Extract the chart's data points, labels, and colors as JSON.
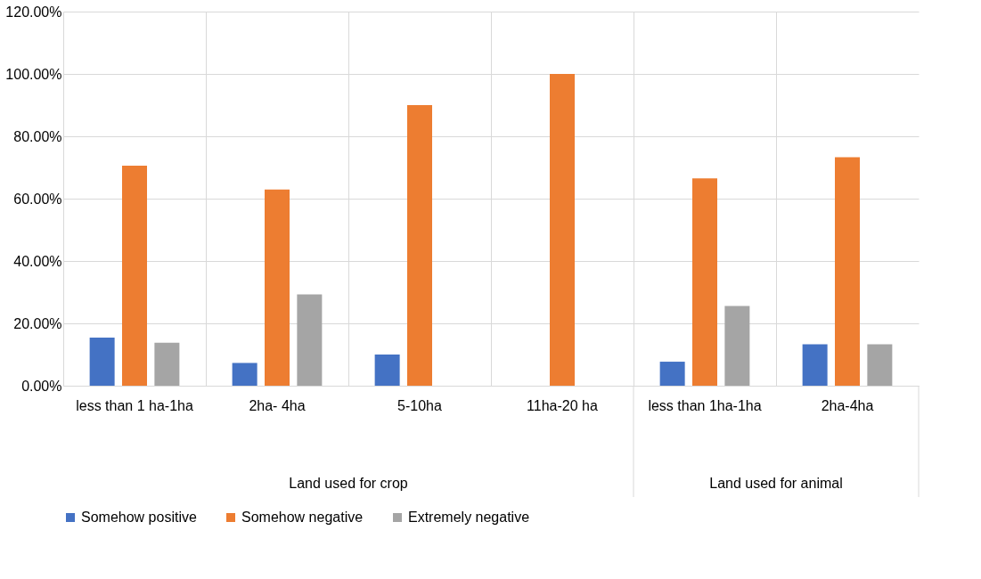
{
  "chart_data": {
    "type": "bar",
    "categories": [
      "less than 1 ha-1ha",
      "2ha- 4ha",
      "5-10ha",
      "11ha-20 ha",
      "less than 1ha-1ha",
      "2ha-4ha"
    ],
    "series": [
      {
        "name": "Somehow positive",
        "color": "#4472c4",
        "values": [
          15.4,
          7.3,
          10.0,
          0,
          7.7,
          13.3
        ]
      },
      {
        "name": "Somehow negative",
        "color": "#ed7d31",
        "values": [
          70.6,
          62.9,
          90.0,
          100.0,
          66.5,
          73.3
        ]
      },
      {
        "name": "Extremely negative",
        "color": "#a5a5a5",
        "values": [
          13.8,
          29.3,
          0,
          0,
          25.6,
          13.3
        ]
      }
    ],
    "ylim": [
      0,
      120
    ],
    "yticks": [
      {
        "value": 0,
        "label": "0.00%"
      },
      {
        "value": 20,
        "label": "20.00%"
      },
      {
        "value": 40,
        "label": "40.00%"
      },
      {
        "value": 60,
        "label": "60.00%"
      },
      {
        "value": 80,
        "label": "80.00%"
      },
      {
        "value": 100,
        "label": "100.00%"
      },
      {
        "value": 120,
        "label": "120.00%"
      }
    ],
    "annotations": [
      "Land used for crop",
      "Land used for animal"
    ],
    "grid": true,
    "legend": "bottom"
  }
}
